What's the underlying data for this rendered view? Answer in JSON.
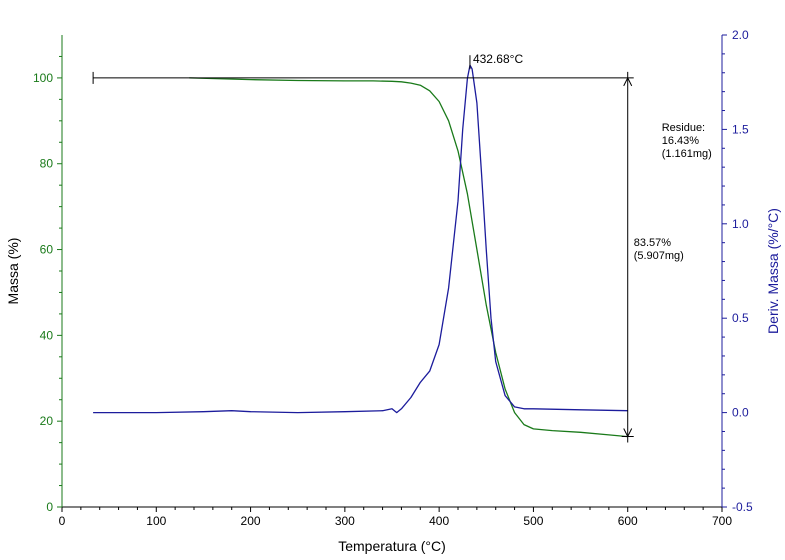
{
  "colors": {
    "mass_series": "#1a7a1a",
    "deriv_series": "#1c1c9c",
    "annotation": "#000000",
    "background": "#ffffff"
  },
  "chart_data": {
    "type": "line",
    "xlabel": "Temperatura (°C)",
    "ylabel_left": "Massa (%)",
    "ylabel_right": "Deriv. Massa (%/°C)",
    "xlim": [
      0,
      700
    ],
    "ylim_left": [
      0,
      110
    ],
    "ylim_right": [
      -0.5,
      2.0
    ],
    "x_ticks": [
      0,
      100,
      200,
      300,
      400,
      500,
      600,
      700
    ],
    "y_left_ticks": [
      0,
      20,
      40,
      60,
      80,
      100
    ],
    "y_right_ticks": [
      -0.5,
      0.0,
      0.5,
      1.0,
      1.5,
      2.0
    ],
    "y_right_tick_labels": [
      "-0.5",
      "0.0",
      "0.5",
      "1.0",
      "1.5",
      "2.0"
    ],
    "grid": false,
    "series": [
      {
        "name": "Massa (%)",
        "axis": "left",
        "x": [
          135,
          200,
          250,
          300,
          330,
          350,
          360,
          370,
          380,
          390,
          400,
          410,
          420,
          430,
          440,
          450,
          460,
          470,
          480,
          490,
          500,
          520,
          550,
          580,
          600
        ],
        "y": [
          100,
          99.6,
          99.4,
          99.3,
          99.3,
          99.2,
          99.1,
          98.8,
          98.3,
          97.0,
          94.5,
          90.0,
          83.0,
          73.0,
          60.0,
          47.0,
          36.0,
          27.5,
          22.0,
          19.2,
          18.2,
          17.8,
          17.4,
          16.8,
          16.4
        ]
      },
      {
        "name": "Deriv. Massa (%/°C)",
        "axis": "right",
        "x": [
          33,
          100,
          150,
          180,
          200,
          250,
          300,
          340,
          350,
          355,
          360,
          370,
          380,
          390,
          400,
          410,
          420,
          425,
          430,
          432.68,
          435,
          440,
          445,
          450,
          455,
          460,
          470,
          480,
          490,
          500,
          550,
          600
        ],
        "y": [
          0.0,
          0.0,
          0.005,
          0.01,
          0.005,
          0.0,
          0.005,
          0.01,
          0.02,
          0.0,
          0.02,
          0.08,
          0.16,
          0.22,
          0.36,
          0.66,
          1.12,
          1.5,
          1.77,
          1.84,
          1.82,
          1.64,
          1.26,
          0.86,
          0.5,
          0.27,
          0.09,
          0.03,
          0.02,
          0.02,
          0.015,
          0.01
        ]
      }
    ],
    "annotations": {
      "peak": {
        "label": "432.68°C",
        "x": 432.68,
        "y_right": 1.84
      },
      "mass_loss": {
        "percent": "83.57%",
        "mass": "(5.907mg)",
        "x": 600,
        "y_top": 100,
        "y_bottom": 16.43,
        "ref_line_x_start": 33
      },
      "residue": {
        "title": "Residue:",
        "percent": "16.43%",
        "mass": "(1.161mg)"
      }
    }
  }
}
